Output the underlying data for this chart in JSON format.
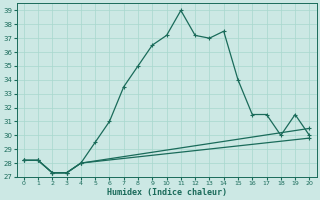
{
  "xlabel": "Humidex (Indice chaleur)",
  "xlim": [
    -0.5,
    20.5
  ],
  "ylim": [
    27,
    39.5
  ],
  "yticks": [
    27,
    28,
    29,
    30,
    31,
    32,
    33,
    34,
    35,
    36,
    37,
    38,
    39
  ],
  "xticks": [
    0,
    1,
    2,
    3,
    4,
    5,
    6,
    7,
    8,
    9,
    10,
    11,
    12,
    13,
    14,
    15,
    16,
    17,
    18,
    19,
    20
  ],
  "bg_color": "#cce8e4",
  "line_color": "#1a6b5a",
  "grid_color": "#a8d8ce",
  "series": [
    {
      "x": [
        0,
        1,
        2,
        3,
        4,
        5,
        6,
        7,
        8,
        9,
        10,
        11,
        12,
        13,
        14,
        15,
        16,
        17,
        18,
        19,
        20
      ],
      "y": [
        28.2,
        28.2,
        27.3,
        27.3,
        28.0,
        29.5,
        31.0,
        33.5,
        35.0,
        36.5,
        37.2,
        39.0,
        37.2,
        37.0,
        37.5,
        34.0,
        31.5,
        31.5,
        30.0,
        31.5,
        30.0
      ]
    },
    {
      "x": [
        0,
        1,
        2,
        3,
        4,
        20
      ],
      "y": [
        28.2,
        28.2,
        27.3,
        27.3,
        28.0,
        30.5
      ]
    },
    {
      "x": [
        0,
        1,
        2,
        3,
        4,
        20
      ],
      "y": [
        28.2,
        28.2,
        27.3,
        27.3,
        28.0,
        29.8
      ]
    }
  ],
  "marker": "+",
  "markersize": 3.5,
  "linewidth": 0.9
}
